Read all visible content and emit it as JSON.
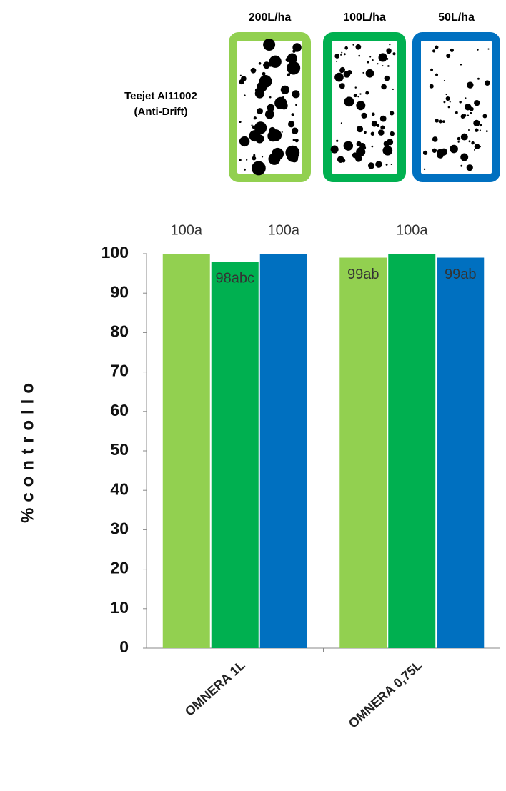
{
  "chart_data": {
    "type": "bar",
    "annotation": [
      "Teejet AI11002",
      "(Anti-Drift)"
    ],
    "y_label": "%controllo",
    "categories": [
      "OMNERA 1L",
      "OMNERA 0,75L"
    ],
    "series": [
      {
        "name": "200L/ha",
        "color": "#92d050",
        "values": [
          100,
          99
        ],
        "value_labels": [
          "100a",
          "99ab"
        ]
      },
      {
        "name": "100L/ha",
        "color": "#00b050",
        "values": [
          98,
          100
        ],
        "value_labels": [
          "98abc",
          "100a"
        ]
      },
      {
        "name": "50L/ha",
        "color": "#0070c0",
        "values": [
          100,
          99
        ],
        "value_labels": [
          "100a",
          "99ab"
        ]
      }
    ],
    "ylim": [
      0,
      100
    ],
    "yticks": [
      0,
      10,
      20,
      30,
      40,
      50,
      60,
      70,
      80,
      90,
      100
    ],
    "grid": false
  }
}
